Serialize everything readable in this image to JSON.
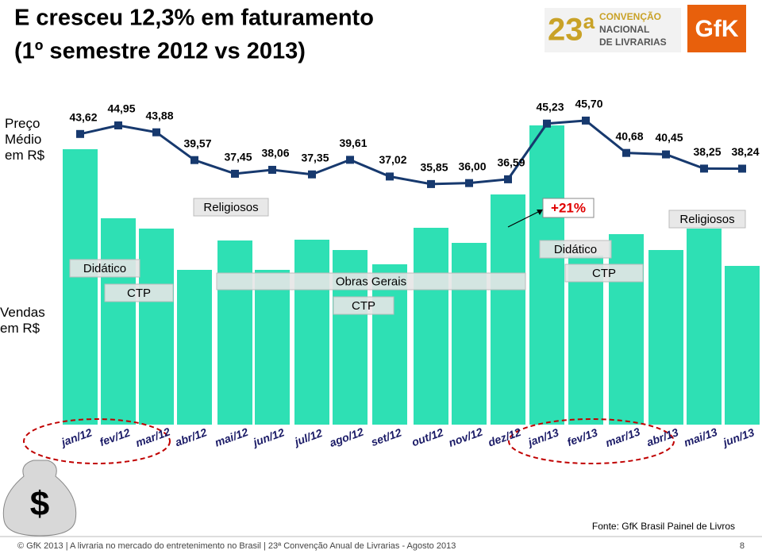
{
  "title_lines": [
    "E cresceu 12,3% em faturamento",
    "(1º semestre 2012 vs 2013)"
  ],
  "logo_event": {
    "number": "23ª",
    "lines": [
      "CONVENÇÃO",
      "NACIONAL",
      "DE LIVRARIAS"
    ]
  },
  "logo_brand": "GfK",
  "chart_data": {
    "type": "bar",
    "categories": [
      "jan/12",
      "fev/12",
      "mar/12",
      "abr/12",
      "mai/12",
      "jun/12",
      "jul/12",
      "ago/12",
      "set/12",
      "out/12",
      "nov/12",
      "dez/12",
      "jan/13",
      "fev/13",
      "mar/13",
      "abr/13",
      "mai/13",
      "jun/13"
    ],
    "series": [
      {
        "name": "Preço Médio em R$",
        "type": "line",
        "color": "#17396e",
        "values": [
          43.62,
          44.95,
          43.88,
          39.57,
          37.45,
          38.06,
          37.35,
          39.61,
          37.02,
          35.85,
          36.0,
          36.59,
          45.23,
          45.7,
          40.68,
          40.45,
          38.25,
          38.24
        ],
        "value_labels": [
          "43,62",
          "44,95",
          "43,88",
          "39,57",
          "37,45",
          "38,06",
          "37,35",
          "39,61",
          "37,02",
          "35,85",
          "36,00",
          "36,59",
          "45,23",
          "45,70",
          "40,68",
          "40,45",
          "38,25",
          "38,24"
        ]
      },
      {
        "name": "Vendas em R$",
        "type": "bar",
        "color": "#2ee0b4",
        "values": [
          347,
          260,
          247,
          195,
          232,
          195,
          233,
          220,
          202,
          248,
          229,
          290,
          377,
          213,
          240,
          220,
          247,
          200
        ]
      }
    ],
    "annotations": [
      "Religiosos",
      "+21%",
      "Religiosos",
      "Didático",
      "CTP",
      "Obras Gerais",
      "CTP",
      "Didático",
      "CTP"
    ]
  },
  "source": "Fonte: GfK Brasil   Painel de Livros",
  "footer": "© GfK 2013 | A livraria no mercado do entretenimento no Brasil | 23ª Convenção Anual de Livrarias - Agosto 2013",
  "page_number": 8
}
